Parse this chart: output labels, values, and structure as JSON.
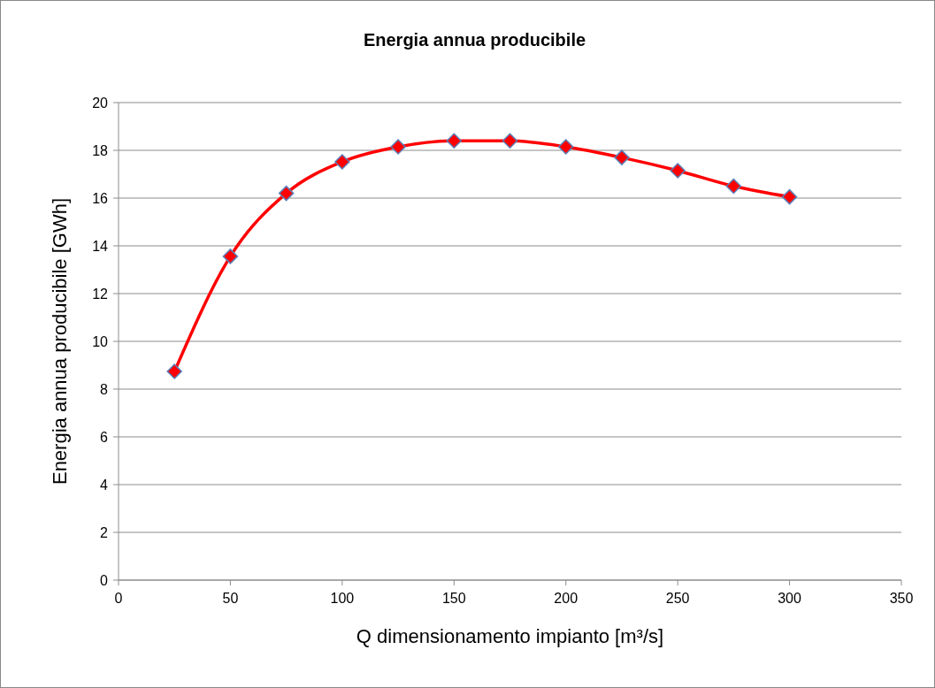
{
  "chart_data": {
    "type": "line",
    "title": "Energia annua producibile",
    "xlabel": "Q dimensionamento impianto [m³/s]",
    "ylabel": "Energia annua producibile [GWh]",
    "x": [
      25,
      50,
      75,
      100,
      125,
      150,
      175,
      200,
      225,
      250,
      275,
      300
    ],
    "series": [
      {
        "color": "#ff0000",
        "values": [
          8.74,
          13.56,
          16.2,
          17.52,
          18.15,
          18.4,
          18.4,
          18.15,
          17.7,
          17.15,
          16.5,
          16.05
        ]
      }
    ],
    "xlim": [
      0,
      350
    ],
    "xticks": [
      0,
      50,
      100,
      150,
      200,
      250,
      300,
      350
    ],
    "ylim": [
      0,
      20
    ],
    "yticks": [
      0,
      2,
      4,
      6,
      8,
      10,
      12,
      14,
      16,
      18,
      20
    ],
    "grid": "y",
    "marker": "diamond",
    "line_style": "solid"
  }
}
